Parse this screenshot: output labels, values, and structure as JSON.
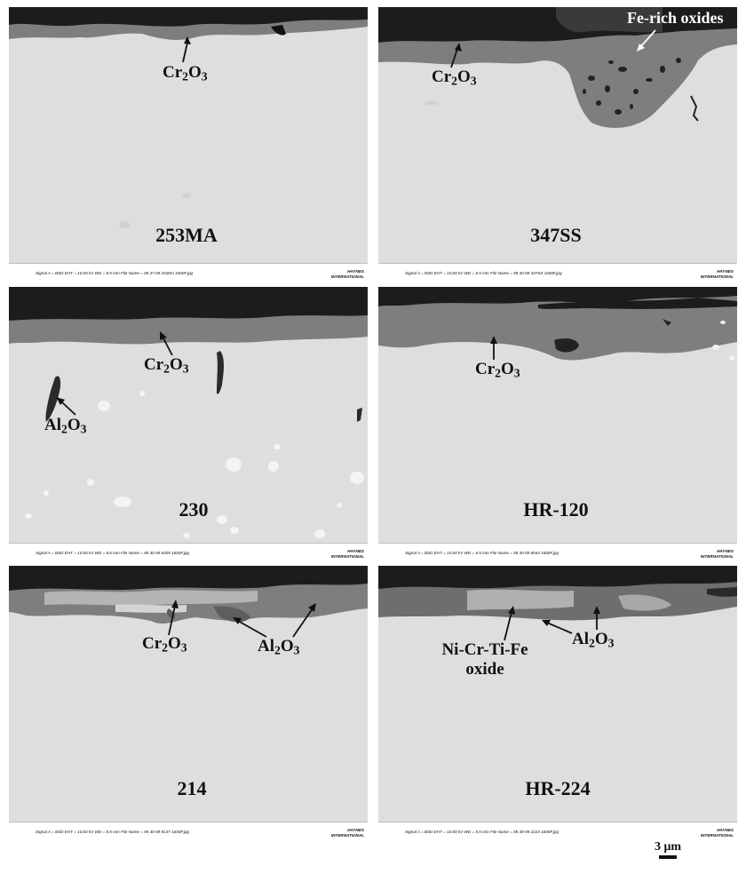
{
  "panels": [
    {
      "sample": "253MA",
      "meta": "Signal A = BSD    EHT = 10.00 kV    WD = 8.5 mm    File Name = Mt 37-09 253MA 1600F.jpg",
      "maker": [
        "HAYNES",
        "INTERNATIONAL"
      ]
    },
    {
      "sample": "347SS",
      "meta": "Signal A = BSD    EHT = 10.00 kV    WD = 8.5 mm    File Name = Mt 30-09 347SS 1600F.jpg",
      "maker": [
        "HAYNES",
        "INTERNATIONAL"
      ]
    },
    {
      "sample": "230",
      "meta": "Signal A = BSD    EHT = 10.00 kV    WD = 8.6 mm    File Name = Mt 30-09 8305 1600F.jpg",
      "maker": [
        "HAYNES",
        "INTERNATIONAL"
      ]
    },
    {
      "sample": "HR-120",
      "meta": "Signal A = BSD    EHT = 10.00 kV    WD = 8.5 mm    File Name = Mt 30-09 8544 1600F.jpg",
      "maker": [
        "HAYNES",
        "INTERNATIONAL"
      ]
    },
    {
      "sample": "214",
      "meta": "Signal A = BSD    EHT = 10.00 kV    WD = 8.5 mm    File Name = Mt 30-09 8147 1600F.jpg",
      "maker": [
        "HAYNES",
        "INTERNATIONAL"
      ]
    },
    {
      "sample": "HR-224",
      "meta": "Signal A = BSD    EHT = 10.00 kV    WD = 8.5 mm    File Name = Mt 30-09 2224 1600F.jpg",
      "maker": [
        "HAYNES",
        "INTERNATIONAL"
      ]
    }
  ],
  "labels": {
    "cr": {
      "base": "Cr",
      "s1": "2",
      "mid": "O",
      "s2": "3"
    },
    "al": {
      "base": "Al",
      "s1": "2",
      "mid": "O",
      "s2": "3"
    },
    "fe_rich": "Fe-rich oxides",
    "nicrtife_line1": "Ni-Cr-Ti-Fe",
    "nicrtife_line2": "oxide"
  },
  "scale_bar": {
    "label": "3 μm"
  },
  "colors": {
    "metal": "#dedede",
    "chromia": "#7e7e7e",
    "mount": "#1c1c1c",
    "inclusion": "#f4f4f4"
  }
}
